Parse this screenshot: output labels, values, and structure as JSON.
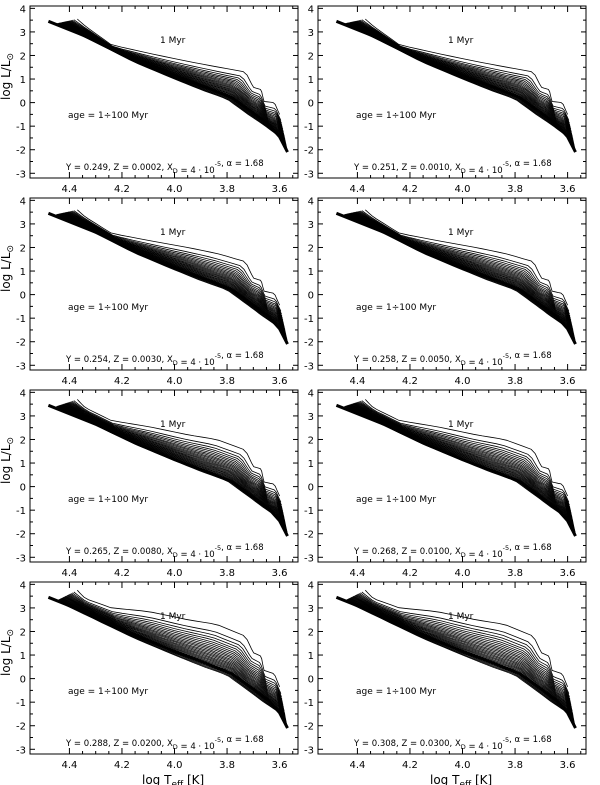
{
  "figure": {
    "ylabel_main": "log L/L",
    "ylabel_sub": "⊙",
    "xlabel_main": "log T",
    "xlabel_sub": "eff",
    "xlabel_unit": "[K]"
  },
  "chart_data": [
    {
      "type": "line",
      "title": "Y = 0.249, Z = 0.0002, X_D = 4·10^-5, α = 1.68",
      "Y": "0.249",
      "Z": "0.0002",
      "XD": "4 · 10",
      "XD_exp": "-5",
      "alpha": "α = 1.68",
      "age_label": "age = 1÷100 Myr",
      "track_label": "1 Myr",
      "xlim": [
        4.55,
        3.53
      ],
      "ylim": [
        -3.2,
        4.1
      ],
      "xticks": [
        "4.4",
        "4.2",
        "4.0",
        "3.8",
        "3.6"
      ],
      "yticks": [
        "4",
        "3",
        "2",
        "1",
        "0",
        "-1",
        "-2",
        "-3"
      ],
      "isochrone_ages_myr": [
        1,
        100
      ],
      "n_isochrones": 27,
      "isochrone_1myr": {
        "logTeff": [
          4.37,
          4.34,
          4.24,
          4.1,
          3.95,
          3.84,
          3.73,
          3.7,
          3.67,
          3.66,
          3.62,
          3.6
        ],
        "logL": [
          3.55,
          3.25,
          2.45,
          2.1,
          1.75,
          1.52,
          1.3,
          0.65,
          0.55,
          0.05,
          0.0,
          -0.5
        ]
      },
      "isochrone_100myr": {
        "logTeff": [
          4.45,
          4.3,
          4.15,
          4.0,
          3.9,
          3.8,
          3.72,
          3.66,
          3.6,
          3.57
        ],
        "logL": [
          3.35,
          2.55,
          1.7,
          1.0,
          0.55,
          0.15,
          -0.5,
          -0.95,
          -1.45,
          -2.05
        ]
      }
    },
    {
      "type": "line",
      "title": "Y = 0.251, Z = 0.0010, X_D = 4·10^-5, α = 1.68",
      "Y": "0.251",
      "Z": "0.0010",
      "XD": "4 · 10",
      "XD_exp": "-5",
      "alpha": "α = 1.68",
      "age_label": "age = 1÷100 Myr",
      "track_label": "1 Myr",
      "xlim": [
        4.55,
        3.53
      ],
      "ylim": [
        -3.2,
        4.1
      ],
      "xticks": [
        "4.4",
        "4.2",
        "4.0",
        "3.8",
        "3.6"
      ],
      "yticks": [
        "4",
        "3",
        "2",
        "1",
        "0",
        "-1",
        "-2",
        "-3"
      ],
      "isochrone_ages_myr": [
        1,
        100
      ],
      "n_isochrones": 27,
      "isochrone_1myr": {
        "logTeff": [
          4.37,
          4.34,
          4.24,
          4.1,
          3.95,
          3.84,
          3.73,
          3.7,
          3.67,
          3.66,
          3.62,
          3.6
        ],
        "logL": [
          3.55,
          3.25,
          2.45,
          2.1,
          1.75,
          1.52,
          1.3,
          0.65,
          0.55,
          0.05,
          0.0,
          -0.5
        ]
      },
      "isochrone_100myr": {
        "logTeff": [
          4.45,
          4.3,
          4.15,
          4.0,
          3.9,
          3.8,
          3.72,
          3.66,
          3.6,
          3.57
        ],
        "logL": [
          3.35,
          2.55,
          1.7,
          1.0,
          0.55,
          0.15,
          -0.5,
          -0.95,
          -1.45,
          -2.05
        ]
      }
    },
    {
      "type": "line",
      "title": "Y = 0.254, Z = 0.0030, X_D = 4·10^-5, α = 1.68",
      "Y": "0.254",
      "Z": "0.0030",
      "XD": "4 · 10",
      "XD_exp": "-5",
      "alpha": "α = 1.68",
      "age_label": "age = 1÷100 Myr",
      "track_label": "1 Myr",
      "xlim": [
        4.55,
        3.53
      ],
      "ylim": [
        -3.2,
        4.1
      ],
      "xticks": [
        "4.4",
        "4.2",
        "4.0",
        "3.8",
        "3.6"
      ],
      "yticks": [
        "4",
        "3",
        "2",
        "1",
        "0",
        "-1",
        "-2",
        "-3"
      ],
      "isochrone_ages_myr": [
        1,
        100
      ],
      "n_isochrones": 27,
      "isochrone_1myr": {
        "logTeff": [
          4.37,
          4.34,
          4.24,
          4.1,
          3.95,
          3.84,
          3.73,
          3.7,
          3.67,
          3.66,
          3.62,
          3.6
        ],
        "logL": [
          3.6,
          3.3,
          2.6,
          2.3,
          2.0,
          1.75,
          1.4,
          0.7,
          0.6,
          0.15,
          0.05,
          -0.45
        ]
      },
      "isochrone_100myr": {
        "logTeff": [
          4.45,
          4.3,
          4.15,
          4.0,
          3.9,
          3.8,
          3.72,
          3.66,
          3.6,
          3.57
        ],
        "logL": [
          3.4,
          2.6,
          1.75,
          1.05,
          0.6,
          0.2,
          -0.45,
          -0.95,
          -1.4,
          -2.0
        ]
      }
    },
    {
      "type": "line",
      "title": "Y = 0.258, Z = 0.0050, X_D = 4·10^-5, α = 1.68",
      "Y": "0.258",
      "Z": "0.0050",
      "XD": "4 · 10",
      "XD_exp": "-5",
      "alpha": "α = 1.68",
      "age_label": "age = 1÷100 Myr",
      "track_label": "1 Myr",
      "xlim": [
        4.55,
        3.53
      ],
      "ylim": [
        -3.2,
        4.1
      ],
      "xticks": [
        "4.4",
        "4.2",
        "4.0",
        "3.8",
        "3.6"
      ],
      "yticks": [
        "4",
        "3",
        "2",
        "1",
        "0",
        "-1",
        "-2",
        "-3"
      ],
      "isochrone_ages_myr": [
        1,
        100
      ],
      "n_isochrones": 27,
      "isochrone_1myr": {
        "logTeff": [
          4.37,
          4.34,
          4.24,
          4.1,
          3.95,
          3.84,
          3.73,
          3.7,
          3.67,
          3.66,
          3.62,
          3.6
        ],
        "logL": [
          3.6,
          3.3,
          2.6,
          2.3,
          2.0,
          1.75,
          1.4,
          0.7,
          0.6,
          0.15,
          0.05,
          -0.45
        ]
      },
      "isochrone_100myr": {
        "logTeff": [
          4.45,
          4.3,
          4.15,
          4.0,
          3.9,
          3.8,
          3.72,
          3.66,
          3.6,
          3.57
        ],
        "logL": [
          3.4,
          2.6,
          1.75,
          1.05,
          0.6,
          0.2,
          -0.45,
          -0.95,
          -1.4,
          -2.0
        ]
      }
    },
    {
      "type": "line",
      "title": "Y = 0.265, Z = 0.0080, X_D = 4·10^-5, α = 1.68",
      "Y": "0.265",
      "Z": "0.0080",
      "XD": "4 · 10",
      "XD_exp": "-5",
      "alpha": "α = 1.68",
      "age_label": "age = 1÷100 Myr",
      "track_label": "1 Myr",
      "xlim": [
        4.55,
        3.53
      ],
      "ylim": [
        -3.2,
        4.1
      ],
      "xticks": [
        "4.4",
        "4.2",
        "4.0",
        "3.8",
        "3.6"
      ],
      "yticks": [
        "4",
        "3",
        "2",
        "1",
        "0",
        "-1",
        "-2",
        "-3"
      ],
      "isochrone_ages_myr": [
        1,
        100
      ],
      "n_isochrones": 27,
      "isochrone_1myr": {
        "logTeff": [
          4.37,
          4.34,
          4.24,
          4.1,
          3.95,
          3.84,
          3.73,
          3.7,
          3.67,
          3.66,
          3.62,
          3.6
        ],
        "logL": [
          3.7,
          3.35,
          2.8,
          2.55,
          2.2,
          2.0,
          1.55,
          0.85,
          0.75,
          0.2,
          0.1,
          -0.4
        ]
      },
      "isochrone_100myr": {
        "logTeff": [
          4.45,
          4.3,
          4.15,
          4.0,
          3.9,
          3.8,
          3.72,
          3.66,
          3.6,
          3.57
        ],
        "logL": [
          3.4,
          2.6,
          1.8,
          1.1,
          0.65,
          0.25,
          -0.4,
          -0.9,
          -1.35,
          -2.0
        ]
      }
    },
    {
      "type": "line",
      "title": "Y = 0.268, Z = 0.0100, X_D = 4·10^-5, α = 1.68",
      "Y": "0.268",
      "Z": "0.0100",
      "XD": "4 · 10",
      "XD_exp": "-5",
      "alpha": "α = 1.68",
      "age_label": "age = 1÷100 Myr",
      "track_label": "1 Myr",
      "xlim": [
        4.55,
        3.53
      ],
      "ylim": [
        -3.2,
        4.1
      ],
      "xticks": [
        "4.4",
        "4.2",
        "4.0",
        "3.8",
        "3.6"
      ],
      "yticks": [
        "4",
        "3",
        "2",
        "1",
        "0",
        "-1",
        "-2",
        "-3"
      ],
      "isochrone_ages_myr": [
        1,
        100
      ],
      "n_isochrones": 27,
      "isochrone_1myr": {
        "logTeff": [
          4.37,
          4.34,
          4.24,
          4.1,
          3.95,
          3.84,
          3.73,
          3.7,
          3.67,
          3.66,
          3.62,
          3.6
        ],
        "logL": [
          3.7,
          3.35,
          2.8,
          2.55,
          2.2,
          2.0,
          1.55,
          0.85,
          0.75,
          0.2,
          0.1,
          -0.4
        ]
      },
      "isochrone_100myr": {
        "logTeff": [
          4.45,
          4.3,
          4.15,
          4.0,
          3.9,
          3.8,
          3.72,
          3.66,
          3.6,
          3.57
        ],
        "logL": [
          3.4,
          2.6,
          1.8,
          1.1,
          0.65,
          0.25,
          -0.4,
          -0.9,
          -1.35,
          -2.0
        ]
      }
    },
    {
      "type": "line",
      "title": "Y = 0.288, Z = 0.0200, X_D = 4·10^-5, α = 1.68",
      "Y": "0.288",
      "Z": "0.0200",
      "XD": "4 · 10",
      "XD_exp": "-5",
      "alpha": "α = 1.68",
      "age_label": "age = 1÷100 Myr",
      "track_label": "1 Myr",
      "xlim": [
        4.55,
        3.53
      ],
      "ylim": [
        -3.2,
        4.1
      ],
      "xticks": [
        "4.4",
        "4.2",
        "4.0",
        "3.8",
        "3.6"
      ],
      "yticks": [
        "4",
        "3",
        "2",
        "1",
        "0",
        "-1",
        "-2",
        "-3"
      ],
      "isochrone_ages_myr": [
        1,
        100
      ],
      "n_isochrones": 27,
      "isochrone_1myr": {
        "logTeff": [
          4.37,
          4.34,
          4.24,
          4.1,
          3.95,
          3.84,
          3.73,
          3.7,
          3.67,
          3.66,
          3.62,
          3.6
        ],
        "logL": [
          3.75,
          3.4,
          3.0,
          2.85,
          2.5,
          2.3,
          1.8,
          1.1,
          0.95,
          0.35,
          0.2,
          -0.35
        ]
      },
      "isochrone_100myr": {
        "logTeff": [
          4.45,
          4.3,
          4.15,
          4.0,
          3.9,
          3.8,
          3.72,
          3.66,
          3.6,
          3.57
        ],
        "logL": [
          3.3,
          2.5,
          1.7,
          1.0,
          0.55,
          0.15,
          -0.5,
          -1.0,
          -1.45,
          -2.1
        ]
      }
    },
    {
      "type": "line",
      "title": "Y = 0.308, Z = 0.0300, X_D = 4·10^-5, α = 1.68",
      "Y": "0.308",
      "Z": "0.0300",
      "XD": "4 · 10",
      "XD_exp": "-5",
      "alpha": "α = 1.68",
      "age_label": "age = 1÷100 Myr",
      "track_label": "1 Myr",
      "xlim": [
        4.55,
        3.53
      ],
      "ylim": [
        -3.2,
        4.1
      ],
      "xticks": [
        "4.4",
        "4.2",
        "4.0",
        "3.8",
        "3.6"
      ],
      "yticks": [
        "4",
        "3",
        "2",
        "1",
        "0",
        "-1",
        "-2",
        "-3"
      ],
      "isochrone_ages_myr": [
        1,
        100
      ],
      "n_isochrones": 27,
      "isochrone_1myr": {
        "logTeff": [
          4.37,
          4.34,
          4.24,
          4.1,
          3.95,
          3.84,
          3.73,
          3.7,
          3.67,
          3.66,
          3.62,
          3.6
        ],
        "logL": [
          3.75,
          3.4,
          3.0,
          2.85,
          2.5,
          2.3,
          1.8,
          1.1,
          0.95,
          0.35,
          0.2,
          -0.35
        ]
      },
      "isochrone_100myr": {
        "logTeff": [
          4.45,
          4.3,
          4.15,
          4.0,
          3.9,
          3.8,
          3.72,
          3.66,
          3.6,
          3.57
        ],
        "logL": [
          3.3,
          2.5,
          1.7,
          1.0,
          0.55,
          0.15,
          -0.5,
          -1.0,
          -1.45,
          -2.1
        ]
      }
    }
  ]
}
